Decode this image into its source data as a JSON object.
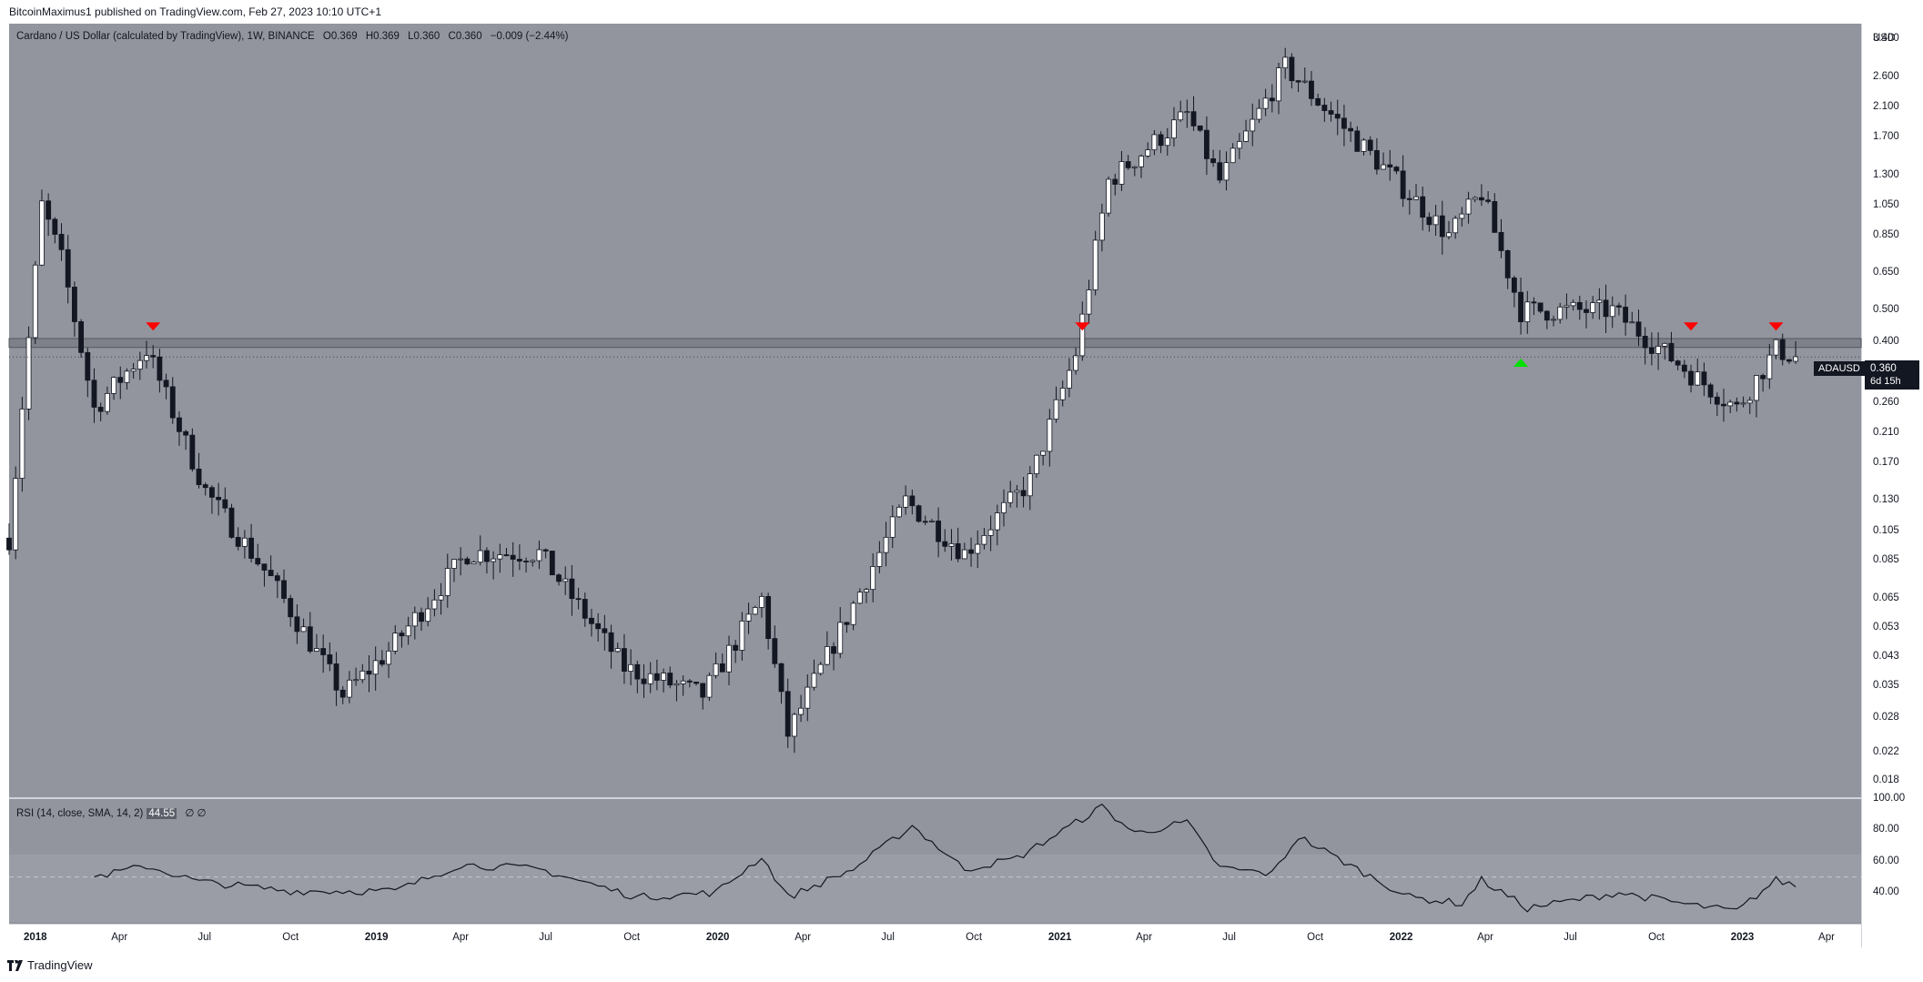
{
  "header": {
    "published": "BitcoinMaximus1 published on TradingView.com, Feb 27, 2023 10:10 UTC+1"
  },
  "legend": {
    "symbol": "Cardano / US Dollar (calculated by TradingView), 1W, BINANCE",
    "o_label": "O",
    "o_value": "0.369",
    "h_label": "H",
    "h_value": "0.369",
    "l_label": "L",
    "l_value": "0.360",
    "c_label": "C",
    "c_value": "0.360",
    "change": "−0.009 (−2.44%)"
  },
  "rsi_legend": {
    "label": "RSI (14, close, SMA, 14, 2)",
    "value": "44.55",
    "extra": "∅ ∅"
  },
  "price_axis": {
    "unit": "USD",
    "ticks": [
      "3.400",
      "2.600",
      "2.100",
      "1.700",
      "1.300",
      "1.050",
      "0.850",
      "0.650",
      "0.500",
      "0.400",
      "0.260",
      "0.210",
      "0.170",
      "0.130",
      "0.105",
      "0.085",
      "0.065",
      "0.053",
      "0.043",
      "0.035",
      "0.028",
      "0.022",
      "0.018"
    ]
  },
  "rsi_axis": {
    "ticks": [
      "100.00",
      "80.00",
      "60.00",
      "40.00"
    ]
  },
  "time_axis": {
    "ticks": [
      "2018",
      "Apr",
      "Jul",
      "Oct",
      "2019",
      "Apr",
      "Jul",
      "Oct",
      "2020",
      "Apr",
      "Jul",
      "Oct",
      "2021",
      "Apr",
      "Jul",
      "Oct",
      "2022",
      "Apr",
      "Jul",
      "Oct",
      "2023",
      "Apr"
    ]
  },
  "tags": {
    "ticker": "ADAUSD",
    "price": "0.360",
    "countdown": "6d 15h"
  },
  "footer": {
    "brand": "TradingView"
  },
  "colors": {
    "background": "#92959d",
    "bull": "#ffffff",
    "bear": "#131722",
    "marker_down": "#ff0000",
    "marker_up": "#00e000",
    "resistance_band": "#6e7179"
  },
  "chart_data": [
    {
      "type": "candlestick",
      "title": "Cardano / US Dollar (calculated by TradingView), 1W, BINANCE",
      "y_scale": "log",
      "ylim": [
        0.016,
        3.8
      ],
      "x_range": [
        "2017-12-04",
        "2023-05-08"
      ],
      "resistance_zone": [
        0.385,
        0.41
      ],
      "last_price": 0.36,
      "key_prices": [
        {
          "date": "2017-12-04",
          "close": 0.1
        },
        {
          "date": "2018-01-08",
          "close": 1.05
        },
        {
          "date": "2018-01-29",
          "close": 0.72
        },
        {
          "date": "2018-03-05",
          "close": 0.25
        },
        {
          "date": "2018-04-30",
          "close": 0.38
        },
        {
          "date": "2018-07-02",
          "close": 0.14
        },
        {
          "date": "2018-09-10",
          "close": 0.075
        },
        {
          "date": "2018-11-26",
          "close": 0.033
        },
        {
          "date": "2019-01-14",
          "close": 0.045
        },
        {
          "date": "2019-04-08",
          "close": 0.09
        },
        {
          "date": "2019-06-24",
          "close": 0.09
        },
        {
          "date": "2019-09-23",
          "close": 0.04
        },
        {
          "date": "2019-12-16",
          "close": 0.033
        },
        {
          "date": "2020-02-17",
          "close": 0.065
        },
        {
          "date": "2020-03-16",
          "close": 0.025
        },
        {
          "date": "2020-07-20",
          "close": 0.13
        },
        {
          "date": "2020-09-21",
          "close": 0.09
        },
        {
          "date": "2020-11-30",
          "close": 0.15
        },
        {
          "date": "2021-01-18",
          "close": 0.37
        },
        {
          "date": "2021-02-22",
          "close": 1.25
        },
        {
          "date": "2021-05-17",
          "close": 2.0
        },
        {
          "date": "2021-06-21",
          "close": 1.25
        },
        {
          "date": "2021-08-30",
          "close": 2.8
        },
        {
          "date": "2021-10-04",
          "close": 2.2
        },
        {
          "date": "2021-12-27",
          "close": 1.25
        },
        {
          "date": "2022-02-21",
          "close": 0.85
        },
        {
          "date": "2022-03-28",
          "close": 1.15
        },
        {
          "date": "2022-05-09",
          "close": 0.5
        },
        {
          "date": "2022-08-15",
          "close": 0.5
        },
        {
          "date": "2022-11-07",
          "close": 0.32
        },
        {
          "date": "2022-12-26",
          "close": 0.25
        },
        {
          "date": "2023-02-06",
          "close": 0.38
        },
        {
          "date": "2023-02-27",
          "close": 0.36
        }
      ],
      "markers": [
        {
          "date": "2018-05-07",
          "price": 0.42,
          "direction": "down",
          "color": "red"
        },
        {
          "date": "2021-01-25",
          "price": 0.42,
          "direction": "down",
          "color": "red"
        },
        {
          "date": "2022-05-09",
          "price": 0.37,
          "direction": "up",
          "color": "green"
        },
        {
          "date": "2022-11-07",
          "price": 0.42,
          "direction": "down",
          "color": "red"
        },
        {
          "date": "2023-02-06",
          "price": 0.42,
          "direction": "down",
          "color": "red"
        }
      ]
    },
    {
      "type": "line",
      "title": "RSI (14, close, SMA, 14, 2)",
      "ylim": [
        20,
        100
      ],
      "midline": 50,
      "band": [
        30,
        70
      ],
      "last_value": 44.55,
      "points": [
        {
          "date": "2018-03-05",
          "value": 50
        },
        {
          "date": "2018-04-30",
          "value": 57
        },
        {
          "date": "2018-06-25",
          "value": 47
        },
        {
          "date": "2018-10-01",
          "value": 41
        },
        {
          "date": "2019-01-21",
          "value": 41
        },
        {
          "date": "2019-04-01",
          "value": 58
        },
        {
          "date": "2019-06-24",
          "value": 55
        },
        {
          "date": "2019-10-07",
          "value": 37
        },
        {
          "date": "2019-12-30",
          "value": 40
        },
        {
          "date": "2020-02-17",
          "value": 63
        },
        {
          "date": "2020-03-16",
          "value": 37
        },
        {
          "date": "2020-05-25",
          "value": 55
        },
        {
          "date": "2020-07-27",
          "value": 83
        },
        {
          "date": "2020-09-21",
          "value": 55
        },
        {
          "date": "2020-11-16",
          "value": 62
        },
        {
          "date": "2021-02-15",
          "value": 95
        },
        {
          "date": "2021-03-22",
          "value": 78
        },
        {
          "date": "2021-05-17",
          "value": 85
        },
        {
          "date": "2021-06-21",
          "value": 56
        },
        {
          "date": "2021-08-16",
          "value": 52
        },
        {
          "date": "2021-09-13",
          "value": 76
        },
        {
          "date": "2021-11-15",
          "value": 55
        },
        {
          "date": "2022-01-10",
          "value": 37
        },
        {
          "date": "2022-03-07",
          "value": 33
        },
        {
          "date": "2022-03-28",
          "value": 48
        },
        {
          "date": "2022-05-16",
          "value": 30
        },
        {
          "date": "2022-08-22",
          "value": 40
        },
        {
          "date": "2022-11-07",
          "value": 32
        },
        {
          "date": "2022-12-26",
          "value": 28
        },
        {
          "date": "2023-02-06",
          "value": 48
        },
        {
          "date": "2023-02-27",
          "value": 44.55
        }
      ]
    }
  ]
}
